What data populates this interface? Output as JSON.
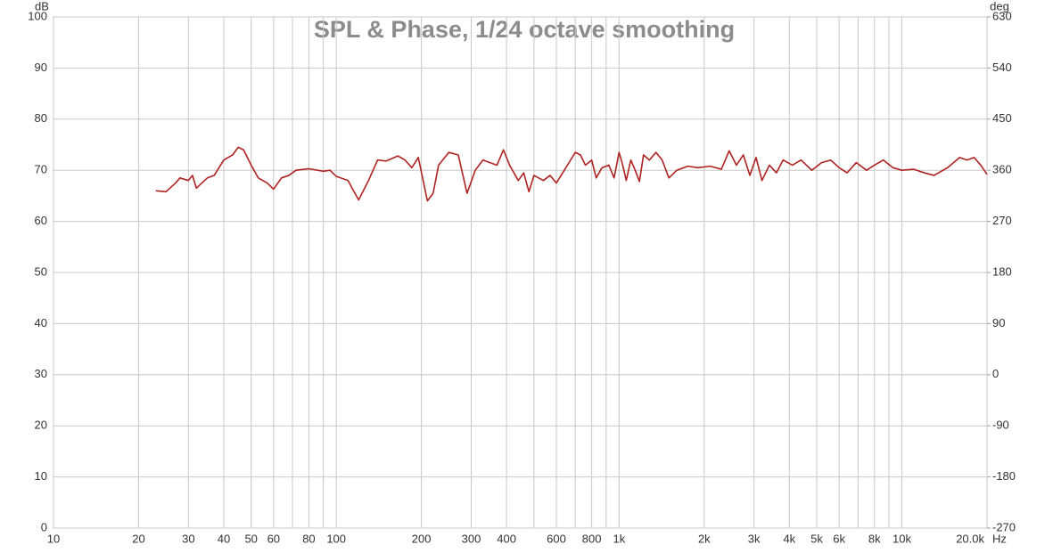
{
  "chart_data": {
    "type": "line",
    "title": "SPL & Phase, 1/24 octave smoothing",
    "y_label": "dB",
    "y2_label": "deg",
    "x_label": "Hz",
    "x_scale": "log",
    "grid": true,
    "xlim": [
      10,
      20000
    ],
    "ylim": [
      0,
      100
    ],
    "y2lim": [
      -270,
      630
    ],
    "xticks": [
      10,
      20,
      30,
      40,
      50,
      60,
      80,
      100,
      200,
      300,
      400,
      600,
      800,
      {
        "value": 1000,
        "label": "1k"
      },
      {
        "value": 2000,
        "label": "2k"
      },
      {
        "value": 3000,
        "label": "3k"
      },
      {
        "value": 4000,
        "label": "4k"
      },
      {
        "value": 5000,
        "label": "5k"
      },
      {
        "value": 6000,
        "label": "6k"
      },
      {
        "value": 8000,
        "label": "8k"
      },
      {
        "value": 10000,
        "label": "10k"
      },
      {
        "value": 20000,
        "label": "20.0k"
      }
    ],
    "xminorticks": [
      70,
      90,
      500,
      700,
      900,
      7000,
      9000
    ],
    "yticks": [
      0,
      10,
      20,
      30,
      40,
      50,
      60,
      70,
      80,
      90,
      100
    ],
    "y2ticks": [
      -270,
      -180,
      -90,
      0,
      90,
      180,
      270,
      360,
      450,
      540,
      630
    ],
    "x": [
      23,
      25,
      27,
      28,
      30,
      31,
      32,
      35,
      37,
      40,
      43,
      45,
      47,
      50,
      53,
      57,
      60,
      64,
      68,
      72,
      80,
      90,
      95,
      100,
      110,
      115,
      120,
      130,
      140,
      150,
      165,
      175,
      185,
      195,
      210,
      220,
      230,
      250,
      270,
      290,
      310,
      330,
      370,
      390,
      410,
      440,
      460,
      480,
      500,
      540,
      570,
      600,
      640,
      700,
      730,
      760,
      800,
      830,
      870,
      920,
      960,
      1000,
      1030,
      1060,
      1100,
      1140,
      1180,
      1220,
      1280,
      1350,
      1420,
      1500,
      1600,
      1750,
      1900,
      2100,
      2300,
      2450,
      2600,
      2750,
      2900,
      3050,
      3200,
      3400,
      3600,
      3800,
      4100,
      4400,
      4800,
      5200,
      5600,
      6000,
      6400,
      6900,
      7500,
      8000,
      8600,
      9300,
      10000,
      11000,
      12000,
      13000,
      14500,
      16000,
      17000,
      18000,
      19000,
      20000
    ],
    "series": [
      {
        "name": "SPL",
        "color": "#b02222",
        "values": [
          66,
          65.8,
          67.5,
          68.5,
          68,
          69,
          66.5,
          68.5,
          69,
          72,
          73,
          74.5,
          74,
          71,
          68.5,
          67.5,
          66.3,
          68.5,
          69,
          70,
          70.3,
          69.8,
          70,
          68.8,
          68,
          66,
          64.2,
          68,
          72,
          71.8,
          72.8,
          72,
          70.5,
          72.5,
          64,
          65.5,
          71,
          73.5,
          73,
          65.5,
          70,
          72,
          71,
          74,
          71,
          68,
          69.5,
          65.8,
          69,
          68,
          69,
          67.5,
          70,
          73.5,
          73,
          71,
          72,
          68.5,
          70.5,
          71,
          68.5,
          73.5,
          71,
          68,
          72,
          70,
          67.8,
          73,
          72,
          73.5,
          72,
          68.5,
          70,
          70.8,
          70.5,
          70.8,
          70.2,
          73.8,
          71,
          73,
          69,
          72.5,
          68,
          71,
          69.5,
          72,
          71,
          72,
          70,
          71.5,
          72,
          70.5,
          69.5,
          71.5,
          70,
          71,
          72,
          70.5,
          70,
          70.2,
          69.5,
          69,
          70.5,
          72.5,
          72,
          72.5,
          71,
          69.2
        ]
      }
    ]
  }
}
